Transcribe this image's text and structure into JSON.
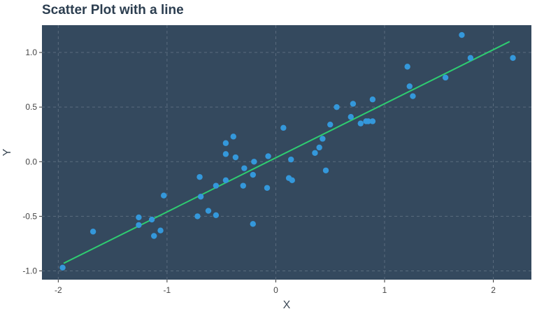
{
  "colors": {
    "panel_background": "#34495e",
    "grid": "#5a6c7e",
    "points": "#3498db",
    "line": "#2ecc71",
    "title": "#2c3e50"
  },
  "chart_data": {
    "type": "scatter",
    "title": "Scatter Plot with a line",
    "xlabel": "X",
    "ylabel": "Y",
    "xlim": [
      -2.15,
      2.35
    ],
    "ylim": [
      -1.08,
      1.25
    ],
    "x_ticks": [
      -2,
      -1,
      0,
      1,
      2
    ],
    "x_tick_labels": [
      "-2",
      "-1",
      "0",
      "1",
      "2"
    ],
    "y_ticks": [
      -1.0,
      -0.5,
      0.0,
      0.5,
      1.0
    ],
    "y_tick_labels": [
      "-1.0",
      "-0.5",
      "0.0",
      "0.5",
      "1.0"
    ],
    "grid": true,
    "legend": "none",
    "series": [
      {
        "type": "scatter",
        "points": [
          [
            -1.96,
            -0.97
          ],
          [
            -1.68,
            -0.64
          ],
          [
            -1.26,
            -0.51
          ],
          [
            -1.26,
            -0.58
          ],
          [
            -1.14,
            -0.53
          ],
          [
            -1.12,
            -0.68
          ],
          [
            -1.06,
            -0.63
          ],
          [
            -1.03,
            -0.31
          ],
          [
            -0.72,
            -0.5
          ],
          [
            -0.69,
            -0.32
          ],
          [
            -0.7,
            -0.14
          ],
          [
            -0.62,
            -0.45
          ],
          [
            -0.55,
            -0.49
          ],
          [
            -0.55,
            -0.22
          ],
          [
            -0.46,
            -0.17
          ],
          [
            -0.46,
            0.17
          ],
          [
            -0.46,
            0.07
          ],
          [
            -0.39,
            0.23
          ],
          [
            -0.37,
            0.04
          ],
          [
            -0.29,
            -0.06
          ],
          [
            -0.3,
            -0.22
          ],
          [
            -0.21,
            -0.12
          ],
          [
            -0.2,
            0.0
          ],
          [
            -0.21,
            -0.57
          ],
          [
            -0.07,
            0.05
          ],
          [
            -0.08,
            -0.24
          ],
          [
            0.07,
            0.31
          ],
          [
            0.12,
            -0.15
          ],
          [
            0.14,
            0.02
          ],
          [
            0.15,
            -0.17
          ],
          [
            0.36,
            0.08
          ],
          [
            0.4,
            0.13
          ],
          [
            0.43,
            0.21
          ],
          [
            0.46,
            -0.08
          ],
          [
            0.5,
            0.34
          ],
          [
            0.56,
            0.5
          ],
          [
            0.69,
            0.41
          ],
          [
            0.71,
            0.53
          ],
          [
            0.78,
            0.35
          ],
          [
            0.83,
            0.37
          ],
          [
            0.85,
            0.37
          ],
          [
            0.89,
            0.57
          ],
          [
            0.89,
            0.37
          ],
          [
            1.21,
            0.87
          ],
          [
            1.23,
            0.69
          ],
          [
            1.26,
            0.6
          ],
          [
            1.56,
            0.77
          ],
          [
            1.71,
            1.16
          ],
          [
            1.79,
            0.95
          ],
          [
            2.18,
            0.95
          ]
        ]
      },
      {
        "type": "line",
        "points": [
          [
            -1.95,
            -0.93
          ],
          [
            2.15,
            1.1
          ]
        ]
      }
    ]
  }
}
